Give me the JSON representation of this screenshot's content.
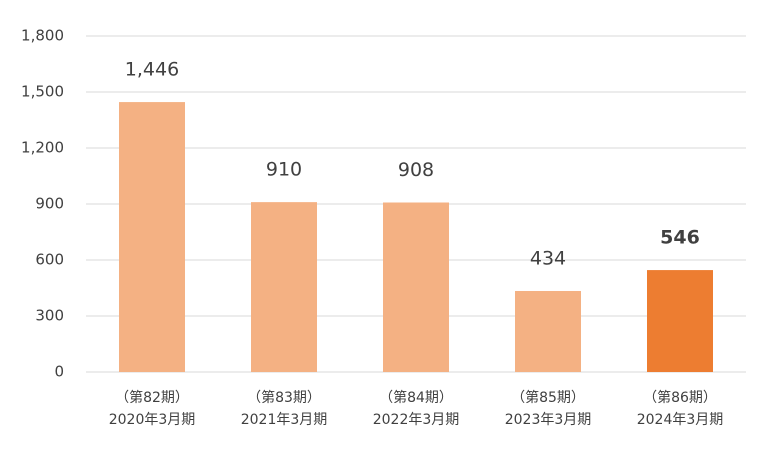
{
  "chart_data": {
    "type": "bar",
    "categories": [
      [
        "（第82期）",
        "2020年3月期"
      ],
      [
        "（第83期）",
        "2021年3月期"
      ],
      [
        "（第84期）",
        "2022年3月期"
      ],
      [
        "（第85期）",
        "2023年3月期"
      ],
      [
        "（第86期）",
        "2024年3月期"
      ]
    ],
    "values": [
      1446,
      910,
      908,
      434,
      546
    ],
    "value_labels": [
      "1,446",
      "910",
      "908",
      "434",
      "546"
    ],
    "colors": [
      "#f4b183",
      "#f4b183",
      "#f4b183",
      "#f4b183",
      "#ed7d31"
    ],
    "ylim": [
      0,
      1800
    ],
    "yticks": [
      0,
      300,
      600,
      900,
      {
        "value": 1200,
        "label": "1,200"
      },
      {
        "value": 1500,
        "label": "1,500"
      },
      {
        "value": 1800,
        "label": "1,800"
      }
    ],
    "grid": true
  }
}
